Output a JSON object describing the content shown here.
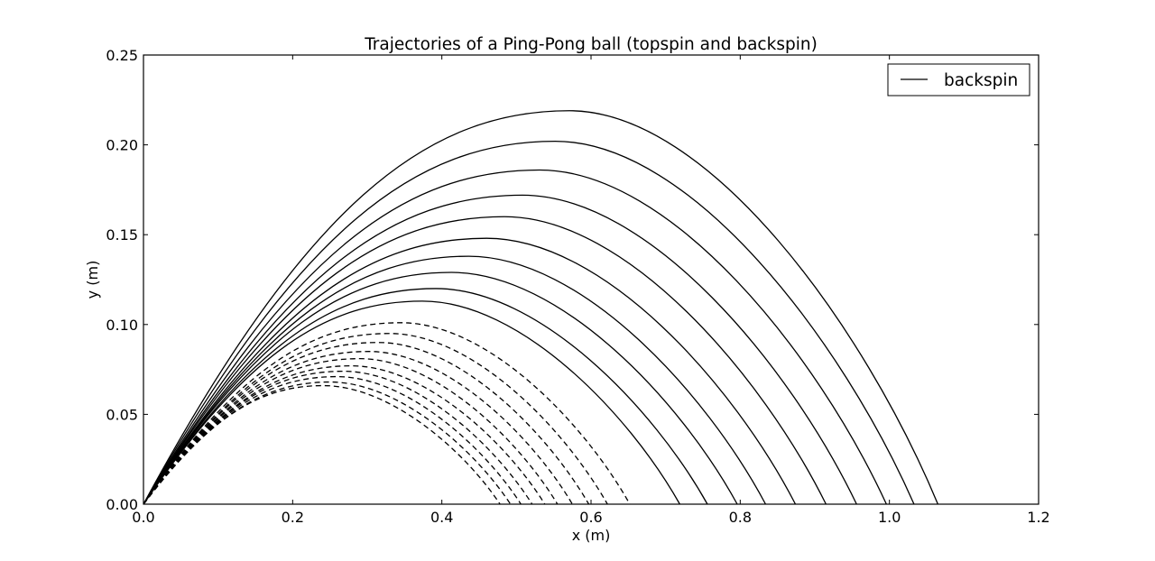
{
  "chart_data": {
    "type": "line",
    "title": "Trajectories of a Ping-Pong ball (topspin and backspin)",
    "xlabel": "x (m)",
    "ylabel": "y (m)",
    "xlim": [
      0.0,
      1.2
    ],
    "ylim": [
      0.0,
      0.25
    ],
    "xticks": [
      "0.0",
      "0.2",
      "0.4",
      "0.6",
      "0.8",
      "1.0",
      "1.2"
    ],
    "yticks": [
      "0.00",
      "0.05",
      "0.10",
      "0.15",
      "0.20",
      "0.25"
    ],
    "grid": false,
    "legend": {
      "position": "top-right",
      "entries": [
        "backspin"
      ]
    },
    "series": [
      {
        "name": "backspin",
        "style": "solid",
        "apex": [
          0.571,
          0.219
        ],
        "landing_x": 1.065
      },
      {
        "style": "solid",
        "apex": [
          0.552,
          0.202
        ],
        "landing_x": 1.033
      },
      {
        "style": "solid",
        "apex": [
          0.531,
          0.186
        ],
        "landing_x": 0.996
      },
      {
        "style": "solid",
        "apex": [
          0.508,
          0.172
        ],
        "landing_x": 0.956
      },
      {
        "style": "solid",
        "apex": [
          0.484,
          0.16
        ],
        "landing_x": 0.915
      },
      {
        "style": "solid",
        "apex": [
          0.46,
          0.148
        ],
        "landing_x": 0.874
      },
      {
        "style": "solid",
        "apex": [
          0.436,
          0.138
        ],
        "landing_x": 0.834
      },
      {
        "style": "solid",
        "apex": [
          0.413,
          0.129
        ],
        "landing_x": 0.796
      },
      {
        "style": "solid",
        "apex": [
          0.392,
          0.12
        ],
        "landing_x": 0.756
      },
      {
        "style": "solid",
        "apex": [
          0.374,
          0.113
        ],
        "landing_x": 0.719
      },
      {
        "style": "dashed",
        "apex": [
          0.345,
          0.101
        ],
        "landing_x": 0.652
      },
      {
        "style": "dashed",
        "apex": [
          0.33,
          0.095
        ],
        "landing_x": 0.622
      },
      {
        "style": "dashed",
        "apex": [
          0.315,
          0.09
        ],
        "landing_x": 0.597
      },
      {
        "style": "dashed",
        "apex": [
          0.302,
          0.085
        ],
        "landing_x": 0.575
      },
      {
        "style": "dashed",
        "apex": [
          0.29,
          0.081
        ],
        "landing_x": 0.555
      },
      {
        "style": "dashed",
        "apex": [
          0.279,
          0.077
        ],
        "landing_x": 0.538
      },
      {
        "style": "dashed",
        "apex": [
          0.268,
          0.074
        ],
        "landing_x": 0.521
      },
      {
        "style": "dashed",
        "apex": [
          0.259,
          0.071
        ],
        "landing_x": 0.506
      },
      {
        "style": "dashed",
        "apex": [
          0.25,
          0.068
        ],
        "landing_x": 0.492
      },
      {
        "style": "dashed",
        "apex": [
          0.241,
          0.066
        ],
        "landing_x": 0.478
      }
    ]
  }
}
